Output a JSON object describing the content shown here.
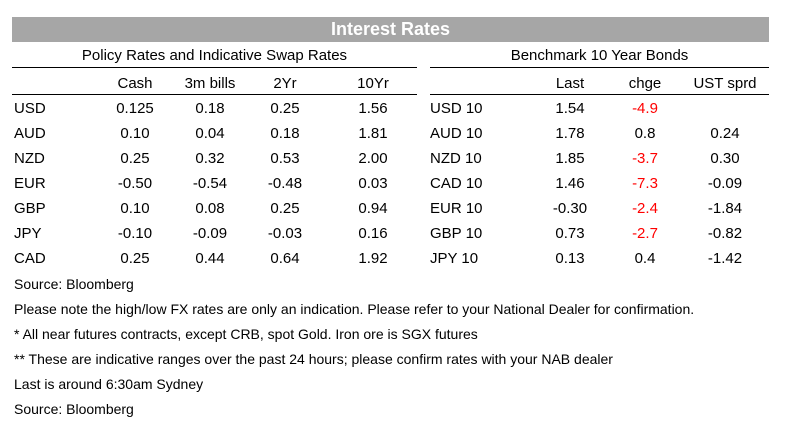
{
  "title": "Interest Rates",
  "policy": {
    "title": "Policy Rates and Indicative Swap Rates",
    "columns": [
      "Cash",
      "3m bills",
      "2Yr",
      "10Yr"
    ],
    "rows": [
      {
        "code": "USD",
        "values": [
          "0.125",
          "0.18",
          "0.25",
          "1.56"
        ]
      },
      {
        "code": "AUD",
        "values": [
          "0.10",
          "0.04",
          "0.18",
          "1.81"
        ]
      },
      {
        "code": "NZD",
        "values": [
          "0.25",
          "0.32",
          "0.53",
          "2.00"
        ]
      },
      {
        "code": "EUR",
        "values": [
          "-0.50",
          "-0.54",
          "-0.48",
          "0.03"
        ]
      },
      {
        "code": "GBP",
        "values": [
          "0.10",
          "0.08",
          "0.25",
          "0.94"
        ]
      },
      {
        "code": "JPY",
        "values": [
          "-0.10",
          "-0.09",
          "-0.03",
          "0.16"
        ]
      },
      {
        "code": "CAD",
        "values": [
          "0.25",
          "0.44",
          "0.64",
          "1.92"
        ]
      }
    ]
  },
  "bonds": {
    "title": "Benchmark 10 Year Bonds",
    "columns": [
      "Last",
      "chge",
      "UST sprd"
    ],
    "rows": [
      {
        "code": "USD 10",
        "last": "1.54",
        "chge": "-4.9",
        "sprd": ""
      },
      {
        "code": "AUD 10",
        "last": "1.78",
        "chge": "0.8",
        "sprd": "0.24"
      },
      {
        "code": "NZD 10",
        "last": "1.85",
        "chge": "-3.7",
        "sprd": "0.30"
      },
      {
        "code": "CAD 10",
        "last": "1.46",
        "chge": "-7.3",
        "sprd": "-0.09"
      },
      {
        "code": "EUR 10",
        "last": "-0.30",
        "chge": "-2.4",
        "sprd": "-1.84"
      },
      {
        "code": "GBP 10",
        "last": "0.73",
        "chge": "-2.7",
        "sprd": "-0.82"
      },
      {
        "code": "JPY 10",
        "last": "0.13",
        "chge": "0.4",
        "sprd": "-1.42"
      }
    ]
  },
  "footnotes": [
    "Source: Bloomberg",
    "Please note the high/low FX rates are only an indication. Please refer to your National Dealer for confirmation.",
    "* All near futures contracts, except CRB, spot Gold.  Iron ore is SGX futures",
    "** These are indicative ranges over the past 24 hours; please confirm rates with your NAB dealer",
    "Last is around 6:30am Sydney",
    "Source: Bloomberg"
  ],
  "colors": {
    "banner": "#a6a6a6",
    "negative": "#ff0000"
  }
}
